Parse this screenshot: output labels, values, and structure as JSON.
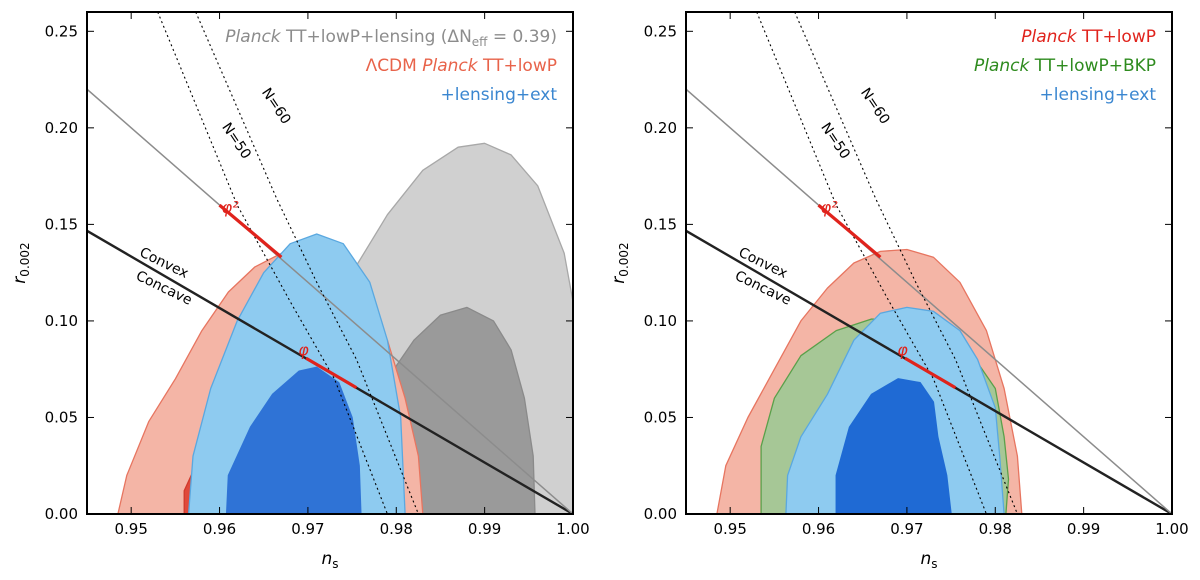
{
  "chart_data": [
    {
      "type": "scatter",
      "subtype": "contour",
      "panel": "left",
      "xlabel_base": "n",
      "xlabel_sub": "s",
      "ylabel_base": "r",
      "ylabel_sub": "0.002",
      "xlim": [
        0.945,
        1.0
      ],
      "ylim": [
        0.0,
        0.26
      ],
      "xticks": [
        0.95,
        0.96,
        0.97,
        0.98,
        0.99,
        1.0
      ],
      "xtick_labels": [
        "0.95",
        "0.96",
        "0.97",
        "0.98",
        "0.99",
        "1.00"
      ],
      "yticks": [
        0.0,
        0.05,
        0.1,
        0.15,
        0.2,
        0.25
      ],
      "ytick_labels": [
        "0.00",
        "0.05",
        "0.10",
        "0.15",
        "0.20",
        "0.25"
      ],
      "legend_position": "top-right",
      "legend": [
        {
          "parts": [
            [
              "Planck",
              "italic"
            ],
            [
              " TT+lowP+lensing (ΔN",
              "normal"
            ],
            [
              "eff",
              "sub"
            ],
            [
              " = 0.39)",
              "normal"
            ]
          ],
          "color": "#8c8c8c"
        },
        {
          "parts": [
            [
              "ΛCDM ",
              "normal"
            ],
            [
              "Planck",
              "italic"
            ],
            [
              " TT+lowP",
              "normal"
            ]
          ],
          "color": "#e8634a"
        },
        {
          "parts": [
            [
              "+lensing+ext",
              "normal"
            ]
          ],
          "color": "#3a86d0"
        }
      ],
      "contours": [
        {
          "name": "Planck TT+lowP+lensing (ΔNeff = 0.39) 95%",
          "fill": "#d0d0d0",
          "stroke": "#a8a8a8",
          "points": [
            [
              0.9585,
              0
            ],
            [
              0.959,
              0.025
            ],
            [
              0.961,
              0.045
            ],
            [
              0.964,
              0.06
            ],
            [
              0.968,
              0.068
            ],
            [
              0.971,
              0.09
            ],
            [
              0.975,
              0.125
            ],
            [
              0.979,
              0.155
            ],
            [
              0.983,
              0.178
            ],
            [
              0.987,
              0.19
            ],
            [
              0.99,
              0.192
            ],
            [
              0.993,
              0.186
            ],
            [
              0.996,
              0.17
            ],
            [
              0.999,
              0.135
            ],
            [
              1.0,
              0.11
            ],
            [
              1.0,
              0
            ]
          ]
        },
        {
          "name": "Planck TT+lowP+lensing (ΔNeff = 0.39) 68%",
          "fill": "#9a9a9a",
          "stroke": "#8a8a8a",
          "points": [
            [
              0.9775,
              0
            ],
            [
              0.9778,
              0.035
            ],
            [
              0.979,
              0.07
            ],
            [
              0.982,
              0.09
            ],
            [
              0.985,
              0.103
            ],
            [
              0.988,
              0.107
            ],
            [
              0.991,
              0.1
            ],
            [
              0.993,
              0.085
            ],
            [
              0.9945,
              0.06
            ],
            [
              0.9955,
              0.03
            ],
            [
              0.9957,
              0
            ]
          ]
        },
        {
          "name": "ΛCDM Planck TT+lowP 95%",
          "fill": "#f4b5a6",
          "stroke": "#e77560",
          "points": [
            [
              0.9485,
              0
            ],
            [
              0.9495,
              0.02
            ],
            [
              0.952,
              0.048
            ],
            [
              0.955,
              0.07
            ],
            [
              0.958,
              0.095
            ],
            [
              0.961,
              0.115
            ],
            [
              0.964,
              0.128
            ],
            [
              0.967,
              0.135
            ],
            [
              0.97,
              0.135
            ],
            [
              0.973,
              0.128
            ],
            [
              0.976,
              0.11
            ],
            [
              0.979,
              0.09
            ],
            [
              0.981,
              0.06
            ],
            [
              0.9825,
              0.03
            ],
            [
              0.983,
              0
            ]
          ]
        },
        {
          "name": "ΛCDM Planck TT+lowP 68%",
          "fill": "#e0493a",
          "stroke": "#d03a2c",
          "points": [
            [
              0.956,
              0
            ],
            [
              0.956,
              0.012
            ],
            [
              0.957,
              0.022
            ],
            [
              0.966,
              0.03
            ],
            [
              0.97,
              0.02
            ],
            [
              0.972,
              0
            ]
          ]
        },
        {
          "name": "+lensing+ext 95%",
          "fill": "#8ecbf0",
          "stroke": "#5aa8e0",
          "points": [
            [
              0.9565,
              0
            ],
            [
              0.957,
              0.03
            ],
            [
              0.959,
              0.065
            ],
            [
              0.962,
              0.1
            ],
            [
              0.965,
              0.125
            ],
            [
              0.968,
              0.14
            ],
            [
              0.971,
              0.145
            ],
            [
              0.974,
              0.14
            ],
            [
              0.977,
              0.12
            ],
            [
              0.979,
              0.09
            ],
            [
              0.9805,
              0.05
            ],
            [
              0.981,
              0
            ]
          ]
        },
        {
          "name": "+lensing+ext 68%",
          "fill": "#2f73d6",
          "stroke": "#2f73d6",
          "points": [
            [
              0.9608,
              0
            ],
            [
              0.961,
              0.02
            ],
            [
              0.9635,
              0.045
            ],
            [
              0.966,
              0.062
            ],
            [
              0.969,
              0.074
            ],
            [
              0.971,
              0.076
            ],
            [
              0.9735,
              0.068
            ],
            [
              0.975,
              0.05
            ],
            [
              0.9758,
              0.025
            ],
            [
              0.976,
              0
            ]
          ]
        }
      ],
      "lines": [
        {
          "name": "concave-convex boundary",
          "color": "#222222",
          "width": 2.4,
          "points": [
            [
              0.945,
              0.1467
            ],
            [
              1.0,
              0
            ]
          ]
        },
        {
          "name": "phi-squared line",
          "color": "#8c8c8c",
          "width": 1.5,
          "points": [
            [
              0.945,
              0.22
            ],
            [
              1.0,
              0
            ]
          ]
        },
        {
          "name": "N=50",
          "color": "#000000",
          "width": 1.1,
          "dash": "2,3",
          "points": [
            [
              0.953,
              0.26
            ],
            [
              0.962,
              0.16
            ],
            [
              0.968,
              0.11
            ],
            [
              0.973,
              0.07
            ],
            [
              0.979,
              0
            ]
          ]
        },
        {
          "name": "N=60",
          "color": "#000000",
          "width": 1.1,
          "dash": "2,3",
          "points": [
            [
              0.9573,
              0.26
            ],
            [
              0.9665,
              0.163
            ],
            [
              0.971,
              0.12
            ],
            [
              0.9755,
              0.08
            ],
            [
              0.9825,
              0
            ]
          ]
        },
        {
          "name": "phi-squared model",
          "color": "#e0231c",
          "width": 3.2,
          "points": [
            [
              0.96,
              0.16
            ],
            [
              0.967,
              0.133
            ]
          ]
        },
        {
          "name": "phi model",
          "color": "#e0231c",
          "width": 3.2,
          "points": [
            [
              0.9698,
              0.0807
            ],
            [
              0.9755,
              0.0654
            ]
          ]
        }
      ],
      "annotations": [
        {
          "text": "N=60",
          "kind": "plain",
          "x": 0.966,
          "y": 0.21,
          "rotate": 56
        },
        {
          "text": "N=50",
          "kind": "plain",
          "x": 0.9615,
          "y": 0.192,
          "rotate": 56
        },
        {
          "text": "Convex",
          "kind": "plain",
          "x": 0.9535,
          "y": 0.128,
          "rotate": 26
        },
        {
          "text": "Concave",
          "kind": "plain",
          "x": 0.9535,
          "y": 0.115,
          "rotate": 26
        },
        {
          "text": "φ²",
          "kind": "red",
          "x": 0.9612,
          "y": 0.156,
          "rotate": 0
        },
        {
          "text": "φ",
          "kind": "red",
          "x": 0.9695,
          "y": 0.082,
          "rotate": 0
        }
      ]
    },
    {
      "type": "scatter",
      "subtype": "contour",
      "panel": "right",
      "xlabel_base": "n",
      "xlabel_sub": "s",
      "ylabel_base": "r",
      "ylabel_sub": "0.002",
      "xlim": [
        0.945,
        1.0
      ],
      "ylim": [
        0.0,
        0.26
      ],
      "xticks": [
        0.95,
        0.96,
        0.97,
        0.98,
        0.99,
        1.0
      ],
      "xtick_labels": [
        "0.95",
        "0.96",
        "0.97",
        "0.98",
        "0.99",
        "1.00"
      ],
      "yticks": [
        0.0,
        0.05,
        0.1,
        0.15,
        0.2,
        0.25
      ],
      "ytick_labels": [
        "0.00",
        "0.05",
        "0.10",
        "0.15",
        "0.20",
        "0.25"
      ],
      "legend_position": "top-right",
      "legend": [
        {
          "parts": [
            [
              "Planck",
              "italic"
            ],
            [
              " TT+lowP",
              "normal"
            ]
          ],
          "color": "#e0231c"
        },
        {
          "parts": [
            [
              "Planck",
              "italic"
            ],
            [
              " TT+lowP+BKP",
              "normal"
            ]
          ],
          "color": "#2e8b1e"
        },
        {
          "parts": [
            [
              "+lensing+ext",
              "normal"
            ]
          ],
          "color": "#3a86d0"
        }
      ],
      "contours": [
        {
          "name": "Planck TT+lowP 95%",
          "fill": "#f4b5a6",
          "stroke": "#e77560",
          "points": [
            [
              0.9485,
              0
            ],
            [
              0.9495,
              0.025
            ],
            [
              0.952,
              0.05
            ],
            [
              0.955,
              0.075
            ],
            [
              0.958,
              0.1
            ],
            [
              0.961,
              0.117
            ],
            [
              0.964,
              0.13
            ],
            [
              0.967,
              0.136
            ],
            [
              0.97,
              0.137
            ],
            [
              0.973,
              0.133
            ],
            [
              0.976,
              0.12
            ],
            [
              0.979,
              0.095
            ],
            [
              0.981,
              0.065
            ],
            [
              0.9825,
              0.03
            ],
            [
              0.983,
              0
            ]
          ]
        },
        {
          "name": "Planck TT+lowP+BKP 95%",
          "fill": "#a6c796",
          "stroke": "#5aa04a",
          "points": [
            [
              0.9535,
              0
            ],
            [
              0.9535,
              0.035
            ],
            [
              0.955,
              0.06
            ],
            [
              0.958,
              0.082
            ],
            [
              0.962,
              0.095
            ],
            [
              0.966,
              0.101
            ],
            [
              0.97,
              0.1
            ],
            [
              0.974,
              0.095
            ],
            [
              0.977,
              0.085
            ],
            [
              0.98,
              0.065
            ],
            [
              0.981,
              0.04
            ],
            [
              0.9815,
              0.018
            ],
            [
              0.9812,
              0
            ]
          ]
        },
        {
          "name": "Planck TT+lowP+BKP 68%",
          "fill": "#2a7a1a",
          "stroke": "#2a7a1a",
          "points": [
            [
              0.9572,
              0
            ],
            [
              0.9572,
              0.025
            ],
            [
              0.958,
              0.03
            ],
            [
              0.9585,
              0.022
            ],
            [
              0.9583,
              0
            ]
          ]
        },
        {
          "name": "+lensing+ext 95%",
          "fill": "#8ecbf0",
          "stroke": "#5aa8e0",
          "points": [
            [
              0.9563,
              0
            ],
            [
              0.9565,
              0.02
            ],
            [
              0.958,
              0.04
            ],
            [
              0.961,
              0.062
            ],
            [
              0.964,
              0.09
            ],
            [
              0.967,
              0.104
            ],
            [
              0.97,
              0.107
            ],
            [
              0.973,
              0.105
            ],
            [
              0.976,
              0.095
            ],
            [
              0.978,
              0.08
            ],
            [
              0.98,
              0.055
            ],
            [
              0.9805,
              0.03
            ],
            [
              0.981,
              0
            ]
          ]
        },
        {
          "name": "+lensing+ext 68%",
          "fill": "#1f6ad4",
          "stroke": "#1f6ad4",
          "points": [
            [
              0.962,
              0
            ],
            [
              0.962,
              0.02
            ],
            [
              0.9635,
              0.045
            ],
            [
              0.966,
              0.062
            ],
            [
              0.969,
              0.07
            ],
            [
              0.9715,
              0.068
            ],
            [
              0.973,
              0.058
            ],
            [
              0.9735,
              0.04
            ],
            [
              0.9745,
              0.02
            ],
            [
              0.975,
              0
            ]
          ]
        }
      ],
      "lines": [
        {
          "name": "concave-convex boundary",
          "color": "#222222",
          "width": 2.4,
          "points": [
            [
              0.945,
              0.1467
            ],
            [
              1.0,
              0
            ]
          ]
        },
        {
          "name": "phi-squared line",
          "color": "#8c8c8c",
          "width": 1.5,
          "points": [
            [
              0.945,
              0.22
            ],
            [
              1.0,
              0
            ]
          ]
        },
        {
          "name": "N=50",
          "color": "#000000",
          "width": 1.1,
          "dash": "2,3",
          "points": [
            [
              0.953,
              0.26
            ],
            [
              0.962,
              0.16
            ],
            [
              0.968,
              0.11
            ],
            [
              0.973,
              0.07
            ],
            [
              0.979,
              0
            ]
          ]
        },
        {
          "name": "N=60",
          "color": "#000000",
          "width": 1.1,
          "dash": "2,3",
          "points": [
            [
              0.9573,
              0.26
            ],
            [
              0.9665,
              0.163
            ],
            [
              0.971,
              0.12
            ],
            [
              0.9755,
              0.08
            ],
            [
              0.9825,
              0
            ]
          ]
        },
        {
          "name": "phi-squared model",
          "color": "#e0231c",
          "width": 3.2,
          "points": [
            [
              0.96,
              0.16
            ],
            [
              0.967,
              0.133
            ]
          ]
        },
        {
          "name": "phi model",
          "color": "#e0231c",
          "width": 3.2,
          "points": [
            [
              0.9698,
              0.0807
            ],
            [
              0.9755,
              0.0654
            ]
          ]
        }
      ],
      "annotations": [
        {
          "text": "N=60",
          "kind": "plain",
          "x": 0.966,
          "y": 0.21,
          "rotate": 56
        },
        {
          "text": "N=50",
          "kind": "plain",
          "x": 0.9615,
          "y": 0.192,
          "rotate": 56
        },
        {
          "text": "Convex",
          "kind": "plain",
          "x": 0.9535,
          "y": 0.128,
          "rotate": 26
        },
        {
          "text": "Concave",
          "kind": "plain",
          "x": 0.9535,
          "y": 0.115,
          "rotate": 26
        },
        {
          "text": "φ²",
          "kind": "red",
          "x": 0.9612,
          "y": 0.156,
          "rotate": 0
        },
        {
          "text": "φ",
          "kind": "red",
          "x": 0.9695,
          "y": 0.082,
          "rotate": 0
        }
      ]
    }
  ]
}
